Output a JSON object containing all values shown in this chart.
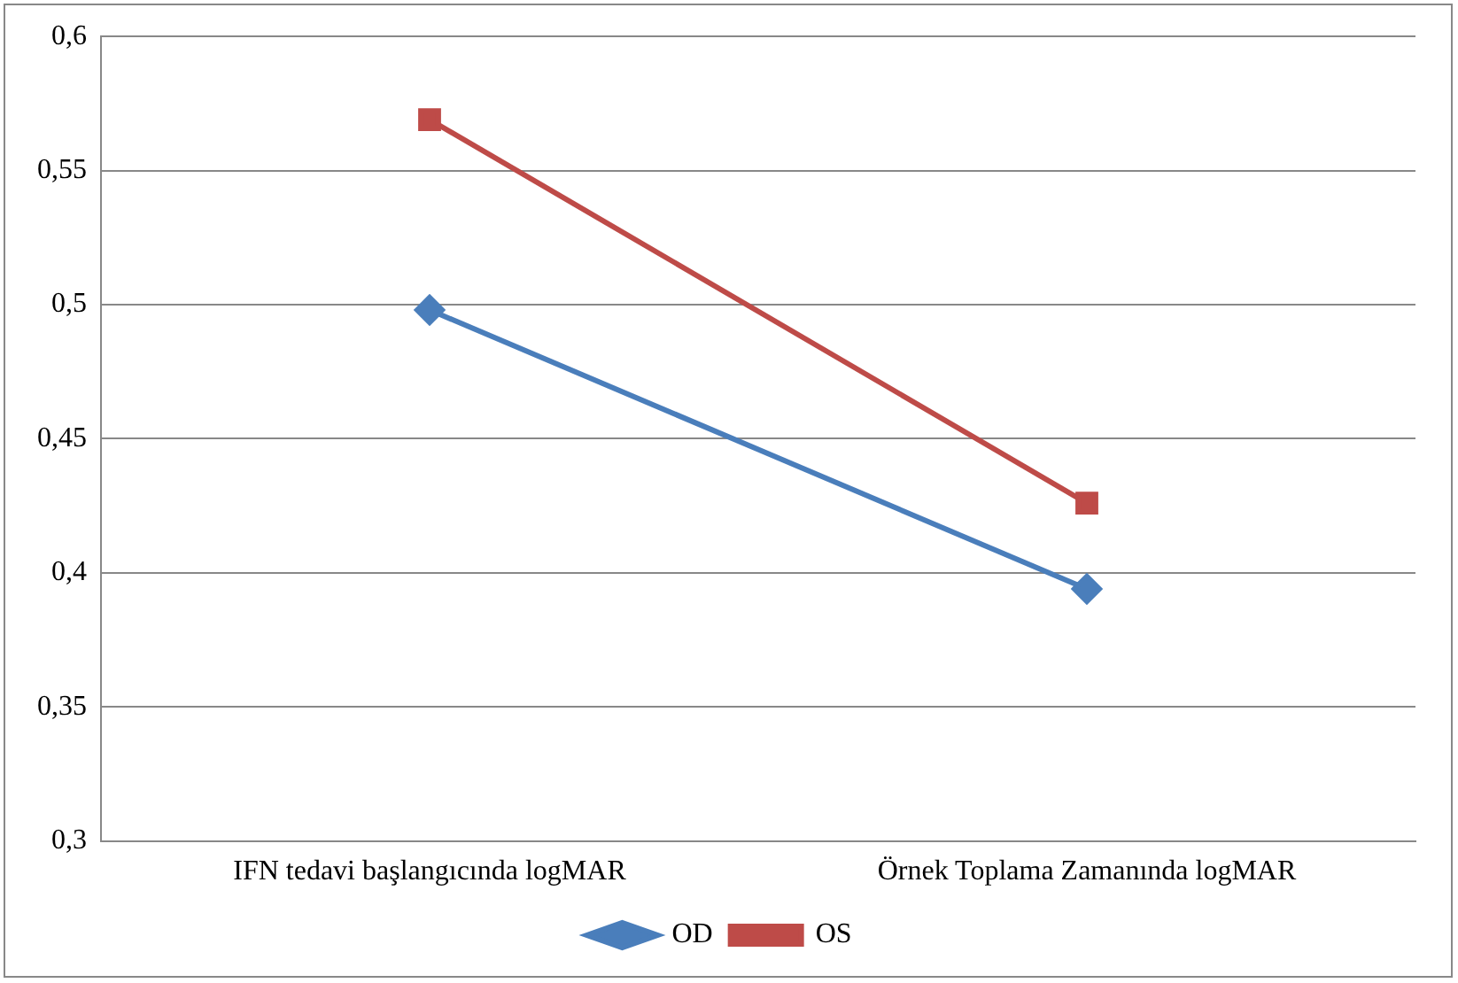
{
  "chart_data": {
    "type": "line",
    "categories": [
      "IFN tedavi başlangıcında logMAR",
      "Örnek Toplama Zamanında logMAR"
    ],
    "series": [
      {
        "name": "OD",
        "color": "#4a7ebb",
        "marker": "diamond",
        "values": [
          0.498,
          0.394
        ]
      },
      {
        "name": "OS",
        "color": "#be4b48",
        "marker": "square",
        "values": [
          0.569,
          0.426
        ]
      }
    ],
    "ylim": [
      0.3,
      0.6
    ],
    "yticks": [
      {
        "value": 0.3,
        "label": "0,3"
      },
      {
        "value": 0.35,
        "label": "0,35"
      },
      {
        "value": 0.4,
        "label": "0,4"
      },
      {
        "value": 0.45,
        "label": "0,45"
      },
      {
        "value": 0.5,
        "label": "0,5"
      },
      {
        "value": 0.55,
        "label": "0,55"
      },
      {
        "value": 0.6,
        "label": "0,6"
      }
    ],
    "grid": "y",
    "legend": "bottom",
    "line_style": "solid"
  }
}
